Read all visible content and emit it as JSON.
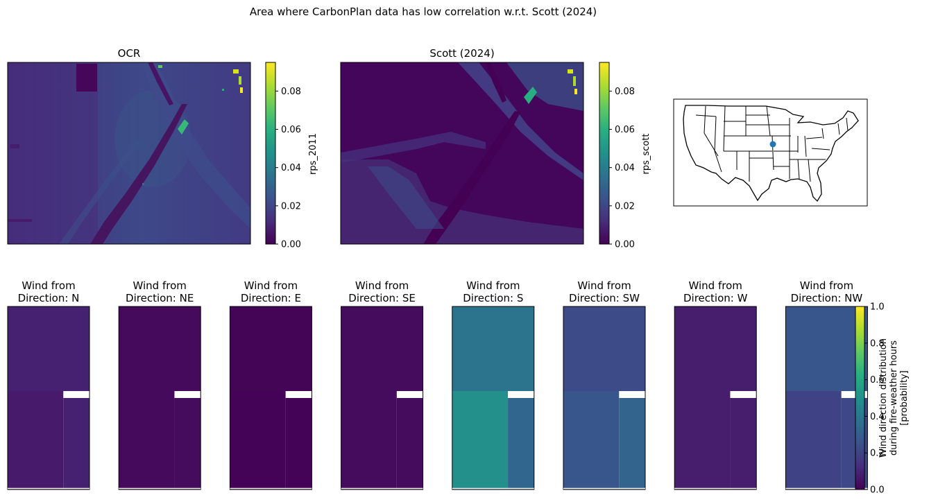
{
  "figure": {
    "suptitle": "Area where CarbonPlan data has low correlation w.r.t. Scott (2024)"
  },
  "chart_data": [
    {
      "type": "heatmap",
      "title": "OCR",
      "colorbar_label": "rps_2011",
      "colormap": "viridis",
      "clim": [
        0.0,
        0.095
      ],
      "colorbar_ticks": [
        "0.00",
        "0.02",
        "0.04",
        "0.06",
        "0.08"
      ],
      "colorbar_tick_values": [
        0.0,
        0.02,
        0.04,
        0.06,
        0.08
      ],
      "description_values": {
        "background_typical": 0.02,
        "river_channel": 0.005,
        "bright_spots_max": 0.09
      }
    },
    {
      "type": "heatmap",
      "title": "Scott (2024)",
      "colorbar_label": "rps_scott",
      "colormap": "viridis",
      "clim": [
        0.0,
        0.095
      ],
      "colorbar_ticks": [
        "0.00",
        "0.02",
        "0.04",
        "0.06",
        "0.08"
      ],
      "colorbar_tick_values": [
        0.0,
        0.02,
        0.04,
        0.06,
        0.08
      ],
      "description_values": {
        "background_typical": 0.005,
        "lower_left_region": 0.015,
        "bright_spots_max": 0.09
      }
    },
    {
      "type": "map",
      "region": "Contiguous United States (state boundaries)",
      "marker": {
        "lon": -94.7,
        "lat": 39.1,
        "color": "#1f77b4"
      }
    },
    {
      "type": "heatmap",
      "group": "wind_direction_panels",
      "colormap": "viridis",
      "clim": [
        0.0,
        1.0
      ],
      "colorbar_label_lines": [
        "Wind direction distribution",
        "during fire-weather hours",
        "[probability]"
      ],
      "colorbar_ticks": [
        "0.0",
        "0.2",
        "0.4",
        "0.6",
        "0.8",
        "1.0"
      ],
      "colorbar_tick_values": [
        0.0,
        0.2,
        0.4,
        0.6,
        0.8,
        1.0
      ],
      "panels": [
        {
          "title_line1": "Wind from",
          "title_line2": "Direction: N",
          "upper": 0.09,
          "lower_left": 0.07,
          "lower_right": 0.09
        },
        {
          "title_line1": "Wind from",
          "title_line2": "Direction: NE",
          "upper": 0.025,
          "lower_left": 0.025,
          "lower_right": 0.03
        },
        {
          "title_line1": "Wind from",
          "title_line2": "Direction: E",
          "upper": 0.01,
          "lower_left": 0.005,
          "lower_right": 0.005
        },
        {
          "title_line1": "Wind from",
          "title_line2": "Direction: SE",
          "upper": 0.03,
          "lower_left": 0.03,
          "lower_right": 0.03
        },
        {
          "title_line1": "Wind from",
          "title_line2": "Direction: S",
          "upper": 0.38,
          "lower_left": 0.5,
          "lower_right": 0.33
        },
        {
          "title_line1": "Wind from",
          "title_line2": "Direction: SW",
          "upper": 0.23,
          "lower_left": 0.27,
          "lower_right": 0.32
        },
        {
          "title_line1": "Wind from",
          "title_line2": "Direction: W",
          "upper": 0.08,
          "lower_left": 0.08,
          "lower_right": 0.08
        },
        {
          "title_line1": "Wind from",
          "title_line2": "Direction: NW",
          "upper": 0.27,
          "lower_left": 0.2,
          "lower_right": 0.22
        }
      ]
    }
  ]
}
